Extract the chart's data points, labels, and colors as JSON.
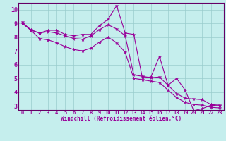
{
  "xlabel": "Windchill (Refroidissement éolien,°C)",
  "background_color": "#c5eeed",
  "line_color": "#990099",
  "grid_color": "#99cccc",
  "axis_color": "#660066",
  "xlim": [
    -0.5,
    23.5
  ],
  "ylim": [
    2.7,
    10.5
  ],
  "yticks": [
    3,
    4,
    5,
    6,
    7,
    8,
    9,
    10
  ],
  "xticks": [
    0,
    1,
    2,
    3,
    4,
    5,
    6,
    7,
    8,
    9,
    10,
    11,
    12,
    13,
    14,
    15,
    16,
    17,
    18,
    19,
    20,
    21,
    22,
    23
  ],
  "series1_x": [
    0,
    1,
    2,
    3,
    4,
    5,
    6,
    7,
    8,
    9,
    10,
    11,
    12,
    13,
    14,
    15,
    16,
    17,
    18,
    19,
    20,
    21,
    22,
    23
  ],
  "series1_y": [
    9.1,
    8.5,
    8.3,
    8.5,
    8.5,
    8.2,
    8.1,
    8.2,
    8.2,
    8.85,
    9.3,
    10.3,
    8.3,
    8.2,
    5.05,
    5.1,
    6.6,
    4.5,
    5.0,
    4.15,
    2.65,
    2.8,
    3.05,
    3.0
  ],
  "series2_x": [
    0,
    1,
    2,
    3,
    4,
    5,
    6,
    7,
    8,
    9,
    10,
    11,
    12,
    13,
    14,
    15,
    16,
    17,
    18,
    19,
    20,
    21,
    22,
    23
  ],
  "series2_y": [
    9.0,
    8.55,
    8.3,
    8.4,
    8.3,
    8.1,
    7.9,
    7.85,
    8.1,
    8.55,
    8.9,
    8.6,
    8.1,
    5.25,
    5.15,
    5.05,
    5.1,
    4.5,
    3.9,
    3.55,
    3.5,
    3.45,
    3.1,
    3.05
  ],
  "series3_x": [
    0,
    1,
    2,
    3,
    4,
    5,
    6,
    7,
    8,
    9,
    10,
    11,
    12,
    13,
    14,
    15,
    16,
    17,
    18,
    19,
    20,
    21,
    22,
    23
  ],
  "series3_y": [
    9.0,
    8.5,
    7.9,
    7.8,
    7.6,
    7.3,
    7.1,
    7.0,
    7.2,
    7.65,
    8.0,
    7.6,
    6.9,
    5.0,
    4.9,
    4.8,
    4.7,
    4.15,
    3.6,
    3.25,
    3.1,
    3.05,
    2.9,
    2.85
  ]
}
